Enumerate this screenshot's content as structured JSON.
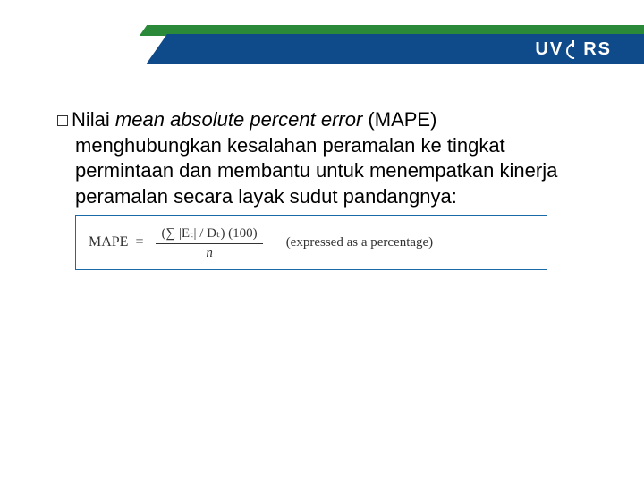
{
  "header": {
    "logo_left": "UV",
    "logo_right": "RS",
    "stripe_green_color": "#2a8a3a",
    "stripe_blue_color": "#0f4a8a"
  },
  "body": {
    "bullet_lead": "Nilai",
    "italic_term": "mean absolute percent error",
    "acronym": "(MAPE)",
    "continuation": "menghubungkan kesalahan peramalan ke tingkat permintaan dan membantu untuk menempatkan kinerja peramalan secara layak sudut pandangnya:"
  },
  "formula": {
    "label": "MAPE",
    "equals": "=",
    "numerator": "(∑ |Eₜ| / Dₜ) (100)",
    "denominator": "n",
    "note": "(expressed as a percentage)",
    "border_color": "#1a6aa8"
  },
  "styling": {
    "body_font_size": 22,
    "formula_font_size": 16,
    "text_color": "#000000",
    "background_color": "#ffffff"
  }
}
